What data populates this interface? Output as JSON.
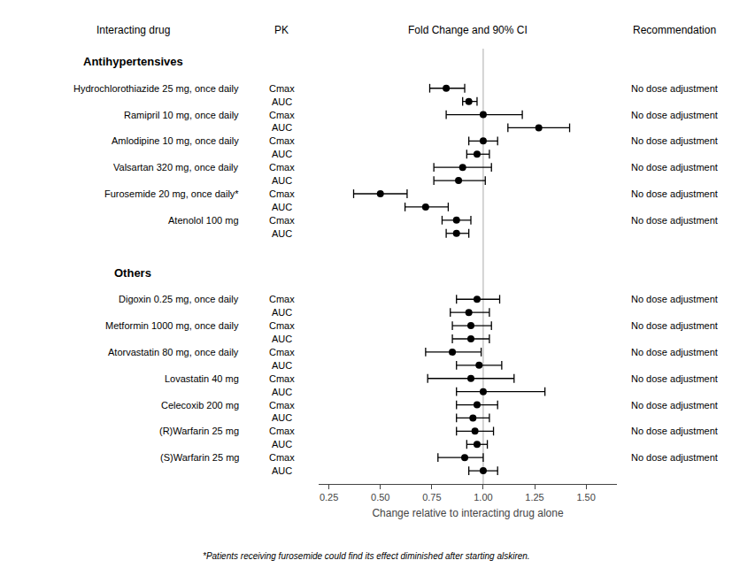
{
  "chart_data": {
    "type": "forest",
    "headers": {
      "drug": "Interacting drug",
      "pk": "PK",
      "plot": "Fold Change and 90% CI",
      "rec": "Recommendation"
    },
    "x_label": "Change relative to interacting drug alone",
    "footnote": "*Patients receiving furosemide could find its effect diminished after starting alskiren.",
    "xlim": [
      0.2,
      1.65
    ],
    "xticks": [
      0.25,
      {
        "value": 0.5,
        "label": "0.50"
      },
      0.75,
      {
        "value": 1.0,
        "label": "1.00"
      },
      1.25,
      {
        "value": 1.5,
        "label": "1.50"
      }
    ],
    "reference_line": {
      "x": 1.0,
      "color": "#aaaaaa"
    },
    "color": "#000000",
    "grid": false,
    "sections": [
      {
        "title": "Antihypertensives",
        "rows": [
          {
            "drug": "Hydrochlorothiazide 25 mg, once daily",
            "pk": "Cmax",
            "mean": 0.82,
            "lo": 0.74,
            "hi": 0.91,
            "rec": "No dose adjustment"
          },
          {
            "pk": "AUC",
            "mean": 0.93,
            "lo": 0.9,
            "hi": 0.97
          },
          {
            "drug": "Ramipril 10 mg, once daily",
            "pk": "Cmax",
            "mean": 1.0,
            "lo": 0.82,
            "hi": 1.19,
            "rec": "No dose adjustment"
          },
          {
            "pk": "AUC",
            "mean": 1.27,
            "lo": 1.12,
            "hi": 1.42
          },
          {
            "drug": "Amlodipine 10 mg, once daily",
            "pk": "Cmax",
            "mean": 1.0,
            "lo": 0.93,
            "hi": 1.07,
            "rec": "No dose adjustment"
          },
          {
            "pk": "AUC",
            "mean": 0.97,
            "lo": 0.92,
            "hi": 1.03
          },
          {
            "drug": "Valsartan 320 mg, once daily",
            "pk": "Cmax",
            "mean": 0.9,
            "lo": 0.76,
            "hi": 1.04,
            "rec": "No dose adjustment"
          },
          {
            "pk": "AUC",
            "mean": 0.88,
            "lo": 0.76,
            "hi": 1.01
          },
          {
            "drug": "Furosemide 20 mg, once daily*",
            "pk": "Cmax",
            "mean": 0.5,
            "lo": 0.37,
            "hi": 0.63,
            "rec": "No dose adjustment"
          },
          {
            "pk": "AUC",
            "mean": 0.72,
            "lo": 0.62,
            "hi": 0.83
          },
          {
            "drug": "Atenolol 100 mg",
            "pk": "Cmax",
            "mean": 0.87,
            "lo": 0.8,
            "hi": 0.94,
            "rec": "No dose adjustment"
          },
          {
            "pk": "AUC",
            "mean": 0.87,
            "lo": 0.82,
            "hi": 0.93
          }
        ]
      },
      {
        "title": "Others",
        "rows": [
          {
            "drug": "Digoxin 0.25 mg, once daily",
            "pk": "Cmax",
            "mean": 0.97,
            "lo": 0.87,
            "hi": 1.08,
            "rec": "No dose adjustment"
          },
          {
            "pk": "AUC",
            "mean": 0.93,
            "lo": 0.84,
            "hi": 1.03
          },
          {
            "drug": "Metformin 1000 mg, once daily",
            "pk": "Cmax",
            "mean": 0.94,
            "lo": 0.85,
            "hi": 1.04,
            "rec": "No dose adjustment"
          },
          {
            "pk": "AUC",
            "mean": 0.94,
            "lo": 0.85,
            "hi": 1.03
          },
          {
            "drug": "Atorvastatin 80 mg, once daily",
            "pk": "Cmax",
            "mean": 0.85,
            "lo": 0.72,
            "hi": 0.99,
            "rec": "No dose adjustment"
          },
          {
            "pk": "AUC",
            "mean": 0.98,
            "lo": 0.87,
            "hi": 1.09
          },
          {
            "drug": "Lovastatin 40 mg",
            "pk": "Cmax",
            "mean": 0.94,
            "lo": 0.73,
            "hi": 1.15,
            "rec": "No dose adjustment"
          },
          {
            "pk": "AUC",
            "mean": 1.0,
            "lo": 0.87,
            "hi": 1.3
          },
          {
            "drug": "Celecoxib 200 mg",
            "pk": "Cmax",
            "mean": 0.97,
            "lo": 0.87,
            "hi": 1.07,
            "rec": "No dose adjustment"
          },
          {
            "pk": "AUC",
            "mean": 0.95,
            "lo": 0.87,
            "hi": 1.03
          },
          {
            "drug": "(R)Warfarin 25 mg",
            "pk": "Cmax",
            "mean": 0.96,
            "lo": 0.87,
            "hi": 1.05,
            "rec": "No dose adjustment"
          },
          {
            "pk": "AUC",
            "mean": 0.97,
            "lo": 0.92,
            "hi": 1.02
          },
          {
            "drug": "(S)Warfarin 25 mg",
            "pk": "Cmax",
            "mean": 0.91,
            "lo": 0.78,
            "hi": 1.0,
            "rec": "No dose adjustment"
          },
          {
            "pk": "AUC",
            "mean": 1.0,
            "lo": 0.93,
            "hi": 1.07
          }
        ]
      }
    ]
  }
}
